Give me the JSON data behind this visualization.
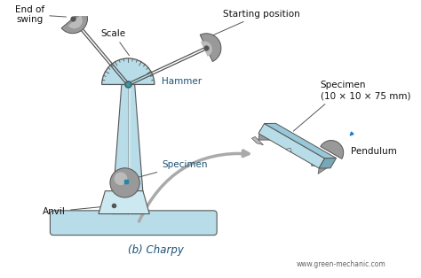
{
  "bg_color": "#ffffff",
  "title": "(b) Charpy",
  "watermark": "www.green-mechanic.com",
  "light_blue": "#b8dde8",
  "light_blue2": "#cce8f0",
  "steel_gray": "#999999",
  "steel_gray2": "#bbbbbb",
  "dark_gray": "#555555",
  "label_color": "#1a5276",
  "text_color": "#111111",
  "labels": {
    "scale": "Scale",
    "starting_position": "Starting position",
    "hammer": "Hammer",
    "end_of_swing": "End of\nswing",
    "anvil": "Anvil",
    "specimen_main": "Specimen",
    "specimen_detail": "Specimen\n(10 × 10 × 75 mm)",
    "pendulum": "Pendulum"
  }
}
